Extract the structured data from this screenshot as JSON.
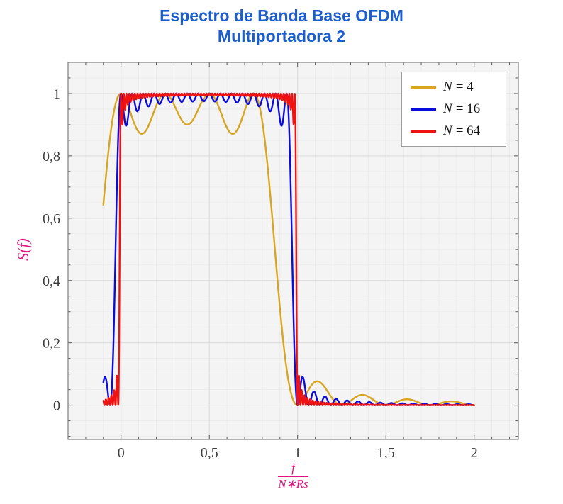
{
  "title": {
    "line1": "Espectro de Banda Base OFDM",
    "line2": "Multiportadora 2",
    "color": "#1b5ecc"
  },
  "chart_data": {
    "type": "line",
    "title": "Espectro de Banda Base OFDM — Multiportadora 2",
    "ylabel": "S(f)",
    "xlabel_fraction": {
      "numerator": "f",
      "denominator": "N∗Rs"
    },
    "axis_label_color": "#e0127f",
    "xlim": [
      -0.3,
      2.25
    ],
    "ylim": [
      -0.11,
      1.1
    ],
    "x_ticks": [
      {
        "v": 0,
        "label": "0"
      },
      {
        "v": 0.5,
        "label": "0,5"
      },
      {
        "v": 1,
        "label": "1"
      },
      {
        "v": 1.5,
        "label": "1,5"
      },
      {
        "v": 2,
        "label": "2"
      }
    ],
    "y_ticks": [
      {
        "v": 0,
        "label": "0"
      },
      {
        "v": 0.2,
        "label": "0,2"
      },
      {
        "v": 0.4,
        "label": "0,4"
      },
      {
        "v": 0.6,
        "label": "0,6"
      },
      {
        "v": 0.8,
        "label": "0,8"
      },
      {
        "v": 1,
        "label": "1"
      }
    ],
    "x_minor_step": 0.1,
    "y_minor_step": 0.05,
    "grid": true,
    "legend_position": "top-right",
    "x_range": [
      -0.1,
      2.0
    ],
    "sample_step": 0.001,
    "model": "S(u) = sum_{k=0}^{N-1} sinc^2(N*u - k), sinc(t)=sin(pi*t)/(pi*t), u = f/(N*Rs)",
    "passband": [
      0,
      1
    ],
    "peak_value": 1.0,
    "series": [
      {
        "name": "N = 4",
        "N": 4,
        "color": "#d9a41f",
        "plateau_ripple_min": 0.87,
        "start_point": {
          "x": -0.1,
          "y": 0.645
        },
        "first_sidelobe": {
          "x": 1.125,
          "y": 0.075
        }
      },
      {
        "name": "N = 16",
        "N": 16,
        "color": "#0b0bdd",
        "plateau_ripple_min": 0.93,
        "start_point": {
          "x": -0.1,
          "y": 0.065
        },
        "first_sidelobe": {
          "x": 1.09,
          "y": 0.05
        }
      },
      {
        "name": "N = 64",
        "N": 64,
        "color": "#ee1212",
        "plateau_ripple_min": 0.98,
        "start_point": {
          "x": -0.1,
          "y": 0.013
        },
        "first_sidelobe": {
          "x": 1.02,
          "y": 0.02
        }
      }
    ]
  },
  "legend": {
    "items": [
      {
        "var": "N",
        "rest": "= 4"
      },
      {
        "var": "N",
        "rest": "= 16"
      },
      {
        "var": "N",
        "rest": "= 64"
      }
    ]
  },
  "style": {
    "plot_bg": "#f4f4f4",
    "grid_major": "#d9d9d9",
    "grid_minor": "#eaeaea",
    "frame": "#808080",
    "tick": "#4a4a4a",
    "tick_label": "#3d3d3d",
    "legend_border": "#9c9c9c",
    "legend_bg": "#ffffff"
  }
}
